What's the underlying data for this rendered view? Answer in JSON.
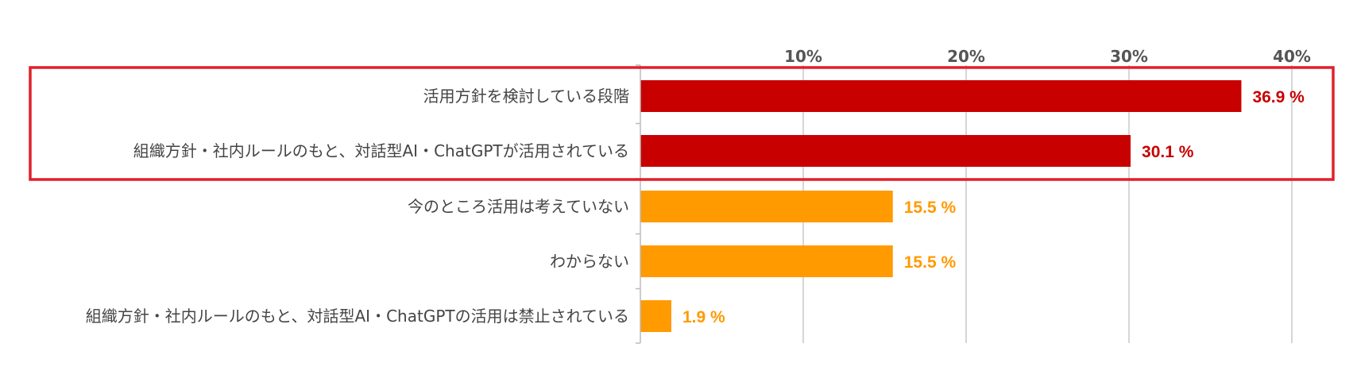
{
  "chart_data": {
    "type": "bar",
    "orientation": "horizontal",
    "title": "",
    "xlabel": "",
    "ylabel": "",
    "x_ticks": [
      "10%",
      "20%",
      "30%",
      "40%"
    ],
    "x_tick_values": [
      10,
      20,
      30,
      40
    ],
    "xlim": [
      0,
      41
    ],
    "grid": true,
    "categories": [
      "活用方針を検討している段階",
      "組織方針・社内ルールのもと、対話型AI・ChatGPTが活用されている",
      "今のところ活用は考えていない",
      "わからない",
      "組織方針・社内ルールのもと、対話型AI・ChatGPTの活用は禁止されている"
    ],
    "values": [
      36.9,
      30.1,
      15.5,
      15.5,
      1.9
    ],
    "value_labels": [
      "36.9 %",
      "30.1 %",
      "15.5 %",
      "15.5 %",
      "1.9 %"
    ],
    "bar_colors": [
      "#c80000",
      "#c80000",
      "#ff9a00",
      "#ff9a00",
      "#ff9a00"
    ],
    "highlight": {
      "category_indices": [
        0,
        1
      ],
      "border_color": "#e0202a"
    },
    "colors": {
      "axis": "#bbbbbb",
      "grid": "#c8c8c8",
      "tick_text": "#555555",
      "category_text": "#444444"
    }
  }
}
